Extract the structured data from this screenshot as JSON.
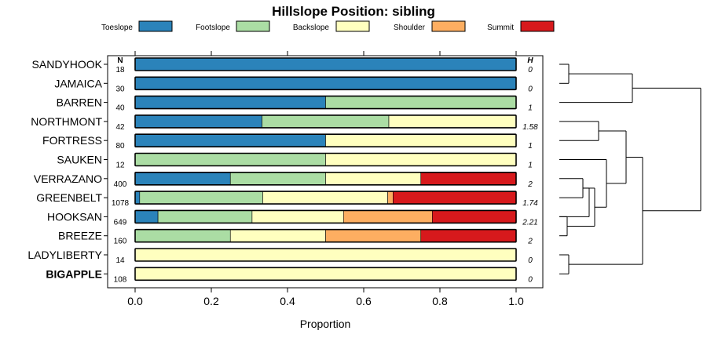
{
  "chart_data": {
    "type": "bar",
    "orientation": "horizontal",
    "stacked": true,
    "title": "Hillslope Position: sibling",
    "xlabel": "Proportion",
    "xlim": [
      0,
      1
    ],
    "x_ticks": [
      "0.0",
      "0.2",
      "0.4",
      "0.6",
      "0.8",
      "1.0"
    ],
    "n_header": "N",
    "h_header": "H",
    "legend_position": "top",
    "series": [
      {
        "name": "Toeslope",
        "color": "#2B83BA"
      },
      {
        "name": "Footslope",
        "color": "#ABDDA4"
      },
      {
        "name": "Backslope",
        "color": "#FFFFBF"
      },
      {
        "name": "Shoulder",
        "color": "#FDAE61"
      },
      {
        "name": "Summit",
        "color": "#D7191C"
      }
    ],
    "rows": [
      {
        "name": "SANDYHOOK",
        "n": "18",
        "h": "0",
        "bold": false,
        "values": [
          1,
          0,
          0,
          0,
          0
        ]
      },
      {
        "name": "JAMAICA",
        "n": "30",
        "h": "0",
        "bold": false,
        "values": [
          1,
          0,
          0,
          0,
          0
        ]
      },
      {
        "name": "BARREN",
        "n": "40",
        "h": "1",
        "bold": false,
        "values": [
          0.5,
          0.5,
          0,
          0,
          0
        ]
      },
      {
        "name": "NORTHMONT",
        "n": "42",
        "h": "1.58",
        "bold": false,
        "values": [
          0.333,
          0.333,
          0.334,
          0,
          0
        ]
      },
      {
        "name": "FORTRESS",
        "n": "80",
        "h": "1",
        "bold": false,
        "values": [
          0.5,
          0,
          0.5,
          0,
          0
        ]
      },
      {
        "name": "SAUKEN",
        "n": "12",
        "h": "1",
        "bold": false,
        "values": [
          0,
          0.5,
          0.5,
          0,
          0
        ]
      },
      {
        "name": "VERRAZANO",
        "n": "400",
        "h": "2",
        "bold": false,
        "values": [
          0.25,
          0.25,
          0.25,
          0,
          0.25
        ]
      },
      {
        "name": "GREENBELT",
        "n": "1078",
        "h": "1.74",
        "bold": false,
        "values": [
          0.012,
          0.323,
          0.328,
          0.014,
          0.323
        ]
      },
      {
        "name": "HOOKSAN",
        "n": "649",
        "h": "2.21",
        "bold": false,
        "values": [
          0.06,
          0.247,
          0.24,
          0.233,
          0.22
        ]
      },
      {
        "name": "BREEZE",
        "n": "160",
        "h": "2",
        "bold": false,
        "values": [
          0,
          0.25,
          0.25,
          0.25,
          0.25
        ]
      },
      {
        "name": "LADYLIBERTY",
        "n": "14",
        "h": "0",
        "bold": false,
        "values": [
          0,
          0,
          1,
          0,
          0
        ]
      },
      {
        "name": "BIGAPPLE",
        "n": "108",
        "h": "0",
        "bold": true,
        "values": [
          0,
          0,
          1,
          0,
          0
        ]
      }
    ],
    "dendrogram_position": "right"
  }
}
